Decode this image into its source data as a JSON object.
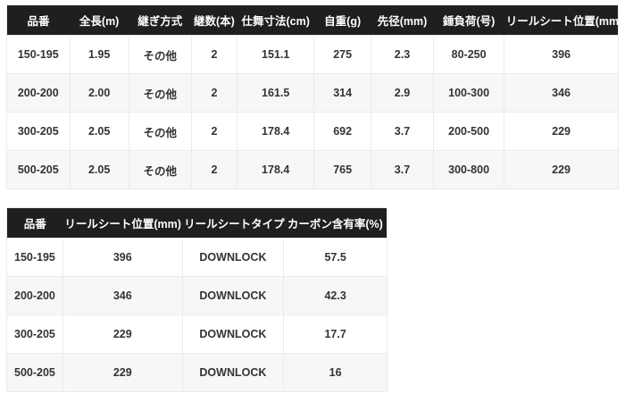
{
  "colors": {
    "header_bg": "#1f1f1f",
    "header_text": "#ffffff",
    "body_text": "#333333",
    "row_alt_bg": "#f7f7f7",
    "border": "#ebebeb",
    "page_bg": "#ffffff"
  },
  "tables": [
    {
      "name": "rod-spec-table",
      "headers": [
        "品番",
        "全長(m)",
        "継ぎ方式",
        "継数(本)",
        "仕舞寸法(cm)",
        "自重(g)",
        "先径(mm)",
        "錘負荷(号)",
        "リールシート位置(mm)"
      ],
      "rows": [
        [
          "150-195",
          "1.95",
          "その他",
          "2",
          "151.1",
          "275",
          "2.3",
          "80-250",
          "396"
        ],
        [
          "200-200",
          "2.00",
          "その他",
          "2",
          "161.5",
          "314",
          "2.9",
          "100-300",
          "346"
        ],
        [
          "300-205",
          "2.05",
          "その他",
          "2",
          "178.4",
          "692",
          "3.7",
          "200-500",
          "229"
        ],
        [
          "500-205",
          "2.05",
          "その他",
          "2",
          "178.4",
          "765",
          "3.7",
          "300-800",
          "229"
        ]
      ]
    },
    {
      "name": "reel-seat-spec-table",
      "headers": [
        "品番",
        "リールシート位置(mm)",
        "リールシートタイプ",
        "カーボン含有率(%)"
      ],
      "rows": [
        [
          "150-195",
          "396",
          "DOWNLOCK",
          "57.5"
        ],
        [
          "200-200",
          "346",
          "DOWNLOCK",
          "42.3"
        ],
        [
          "300-205",
          "229",
          "DOWNLOCK",
          "17.7"
        ],
        [
          "500-205",
          "229",
          "DOWNLOCK",
          "16"
        ]
      ]
    }
  ]
}
